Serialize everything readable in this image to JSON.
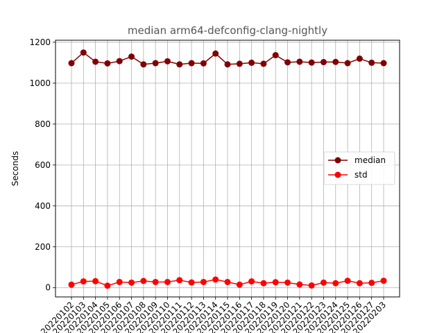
{
  "chart_data": {
    "type": "line",
    "title": "median arm64-defconfig-clang-nightly",
    "xlabel": "",
    "ylabel": "Seconds",
    "ylim": [
      -45,
      1210
    ],
    "yticks": [
      0,
      200,
      400,
      600,
      800,
      1000,
      1200
    ],
    "grid": true,
    "legend_position": "center-right",
    "categories": [
      "20220102",
      "20220103",
      "20220104",
      "20220105",
      "20220106",
      "20220107",
      "20220108",
      "20220109",
      "20220110",
      "20220111",
      "20220112",
      "20220113",
      "20220114",
      "20220115",
      "20220116",
      "20220117",
      "20220118",
      "20220119",
      "20220120",
      "20220121",
      "20220122",
      "20220123",
      "20220124",
      "20220125",
      "20220126",
      "20220127",
      "20220203"
    ],
    "series": [
      {
        "name": "median",
        "color": "#800000",
        "values": [
          1098,
          1150,
          1105,
          1097,
          1108,
          1130,
          1092,
          1098,
          1107,
          1092,
          1098,
          1097,
          1145,
          1092,
          1095,
          1100,
          1095,
          1137,
          1102,
          1105,
          1101,
          1103,
          1104,
          1098,
          1120,
          1100,
          1098
        ]
      },
      {
        "name": "std",
        "color": "#ff0000",
        "values": [
          15,
          31,
          32,
          10,
          28,
          25,
          33,
          28,
          28,
          37,
          26,
          28,
          40,
          28,
          15,
          31,
          22,
          27,
          25,
          16,
          11,
          25,
          22,
          34,
          22,
          24,
          34
        ]
      }
    ]
  }
}
